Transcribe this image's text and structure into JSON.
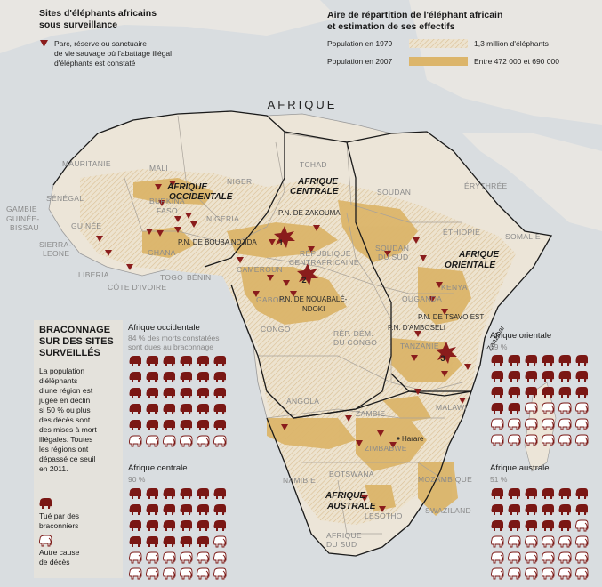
{
  "header": {
    "sites_title_l1": "Sites d'éléphants africains",
    "sites_title_l2": "sous surveillance",
    "sites_legend_l1": "Parc, réserve ou sanctuaire",
    "sites_legend_l2": "de vie sauvage où l'abattage illégal",
    "sites_legend_l3": "d'éléphants est constaté",
    "range_title_l1": "Aire de répartition de l'éléphant africain",
    "range_title_l2": "et estimation de ses effectifs",
    "pop1979_label": "Population en 1979",
    "pop1979_value": "1,3 million d'éléphants",
    "pop2007_label": "Population en 2007",
    "pop2007_value": "Entre 472 000  et 690 000"
  },
  "map": {
    "continent_label": "AFRIQUE",
    "countries": [
      "MAURITANIE",
      "MALI",
      "NIGER",
      "TCHAD",
      "SOUDAN",
      "ÉRYTHRÉE",
      "SÉNÉGAL",
      "GAMBIE",
      "GUINÉE-",
      "BISSAU",
      "GUINÉE",
      "BURKINA",
      "FASO",
      "NIGERIA",
      "ÉTHIOPIE",
      "SOMALIE",
      "SIERRA-",
      "LEONE",
      "LIBERIA",
      "CÔTE D'IVOIRE",
      "GHANA",
      "TOGO",
      "BÉNIN",
      "CAMEROUN",
      "RÉPUBLIQUE",
      "CENTRAFRICAINE",
      "SOUDAN",
      "DU SUD",
      "GABON",
      "CONGO",
      "RÉP. DÉM.",
      "DU CONGO",
      "OUGANDA",
      "KENYA",
      "TANZANIE",
      "ANGOLA",
      "ZAMBIE",
      "MALAWI",
      "ZIMBABWE",
      "MOZAMBIQUE",
      "NAMIBIE",
      "BOTSWANA",
      "LESOTHO",
      "SWAZILAND",
      "AFRIQUE",
      "DU SUD",
      "Harare",
      "Zanzibar"
    ],
    "regions": [
      "AFRIQUE",
      "OCCIDENTALE",
      "AFRIQUE",
      "CENTRALE",
      "AFRIQUE",
      "ORIENTALE",
      "AFRIQUE",
      "AUSTRALE"
    ],
    "parks": [
      "P.N. DE ZAKOUMA",
      "P.N. DE BOUBA NDJIDA",
      "P.N. DE NOUABALÉ-",
      "NDOKI",
      "P.N. DE TSAVO EST",
      "P.N. D'AMBOSELI"
    ],
    "park_markers": [
      "1",
      "2",
      "3"
    ]
  },
  "side": {
    "title_l1": "BRACONNAGE",
    "title_l2": "SUR DES SITES",
    "title_l3": "SURVEILLÉS",
    "text": [
      "La population",
      "d'éléphants",
      "d'une région est",
      "jugée en déclin",
      "si 50 % ou plus",
      "des décès sont",
      "des mises à mort",
      "illégales. Toutes",
      "les régions ont",
      "dépassé ce seuil",
      "en 2011."
    ],
    "leg_killed_l1": "Tué par des",
    "leg_killed_l2": "braconniers",
    "leg_other_l1": "Autre cause",
    "leg_other_l2": "de décès"
  },
  "blocks": [
    {
      "title": "Afrique occidentale",
      "sub_l1": "84 % des morts constatées",
      "sub_l2": "sont dues au braconnage",
      "filled": 30
    },
    {
      "title": "Afrique orientale",
      "sub_l1": "59 %",
      "sub_l2": "",
      "filled": 20
    },
    {
      "title": "Afrique centrale",
      "sub_l1": "90 %",
      "sub_l2": "",
      "filled": 23
    },
    {
      "title": "Afrique australe",
      "sub_l1": "51 %",
      "sub_l2": "",
      "filled": 17
    }
  ],
  "colors": {
    "sea": "#d9dde0",
    "land_other": "#e8e6e2",
    "land_africa": "#ece5d8",
    "range_2007": "#dcb56a",
    "range_1979": "#e5d2b1",
    "marker": "#8a1c1c",
    "elephant": "#7a1714"
  }
}
